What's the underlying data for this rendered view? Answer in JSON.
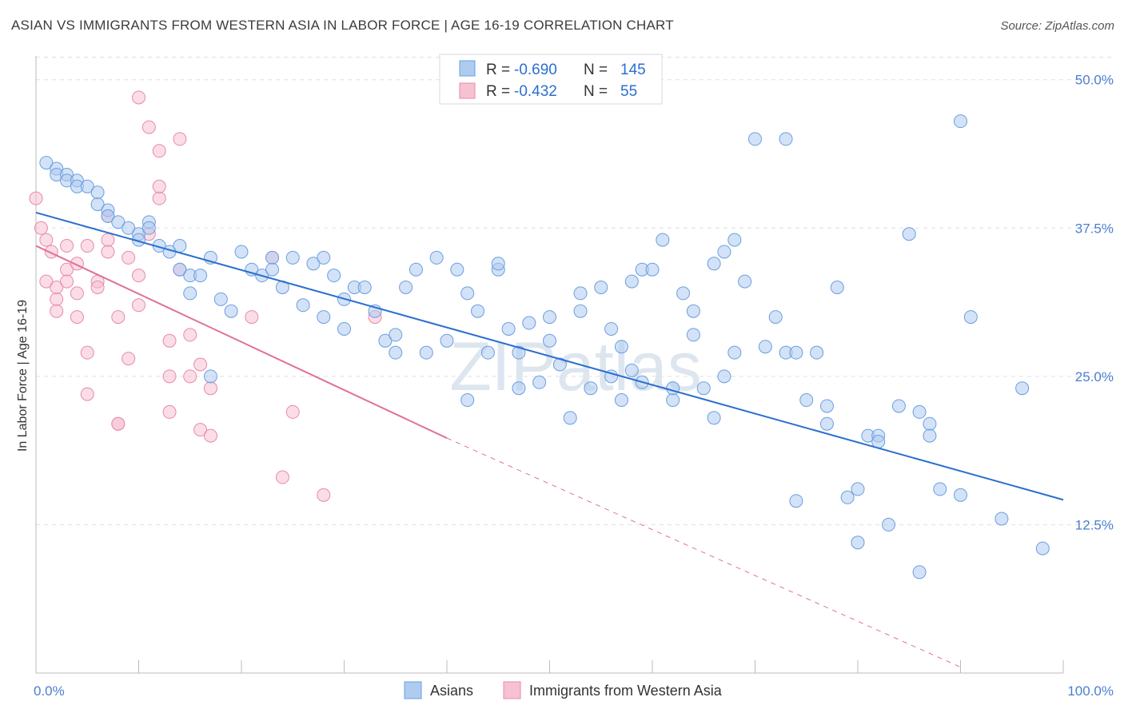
{
  "header": {
    "title": "ASIAN VS IMMIGRANTS FROM WESTERN ASIA IN LABOR FORCE | AGE 16-19 CORRELATION CHART",
    "source": "Source: ZipAtlas.com"
  },
  "watermark": "ZIPatlas",
  "legend_box": {
    "rows": [
      {
        "r_label": "R =",
        "r_value": "-0.690",
        "n_label": "N =",
        "n_value": "145"
      },
      {
        "r_label": "R =",
        "r_value": "-0.432",
        "n_label": "N =",
        "n_value": "55"
      }
    ]
  },
  "colors": {
    "asians": "#6a9fe0",
    "asians_fill": "#aecbf0",
    "asians_line": "#2a6fcf",
    "western_asia": "#e98aa8",
    "western_asia_fill": "#f6c1d1",
    "western_asia_line": "#e0709a",
    "grid": "#e0e0e0",
    "tick_label": "#4a7fcf"
  },
  "chart_data": {
    "type": "scatter",
    "title": "ASIAN VS IMMIGRANTS FROM WESTERN ASIA IN LABOR FORCE | AGE 16-19 CORRELATION CHART",
    "xlabel": "",
    "ylabel": "In Labor Force | Age 16-19",
    "xlim": [
      0,
      100
    ],
    "ylim": [
      0,
      52
    ],
    "x_tick_labels": [
      "0.0%",
      "100.0%"
    ],
    "y_ticks": [
      12.5,
      25.0,
      37.5,
      50.0
    ],
    "y_tick_labels": [
      "12.5%",
      "25.0%",
      "37.5%",
      "50.0%"
    ],
    "grid": true,
    "legend_position": "bottom",
    "series": [
      {
        "name": "Asians",
        "trend": {
          "x0": 0,
          "y0": 38.8,
          "x1": 100,
          "y1": 14.6
        },
        "points": [
          [
            1,
            43
          ],
          [
            2,
            42.5
          ],
          [
            2,
            42
          ],
          [
            3,
            42
          ],
          [
            3,
            41.5
          ],
          [
            4,
            41.5
          ],
          [
            4,
            41
          ],
          [
            5,
            41
          ],
          [
            6,
            40.5
          ],
          [
            6,
            39.5
          ],
          [
            7,
            39
          ],
          [
            7,
            38.5
          ],
          [
            8,
            38
          ],
          [
            9,
            37.5
          ],
          [
            10,
            37
          ],
          [
            10,
            36.5
          ],
          [
            11,
            38
          ],
          [
            11,
            37.5
          ],
          [
            12,
            36
          ],
          [
            13,
            35.5
          ],
          [
            14,
            36
          ],
          [
            14,
            34
          ],
          [
            15,
            33.5
          ],
          [
            15,
            32
          ],
          [
            16,
            33.5
          ],
          [
            17,
            35
          ],
          [
            17,
            25
          ],
          [
            18,
            31.5
          ],
          [
            19,
            30.5
          ],
          [
            20,
            35.5
          ],
          [
            21,
            34
          ],
          [
            22,
            33.5
          ],
          [
            23,
            35
          ],
          [
            23,
            34
          ],
          [
            24,
            32.5
          ],
          [
            25,
            35
          ],
          [
            26,
            31
          ],
          [
            27,
            34.5
          ],
          [
            28,
            30
          ],
          [
            28,
            35
          ],
          [
            29,
            33.5
          ],
          [
            30,
            31.5
          ],
          [
            30,
            29
          ],
          [
            31,
            32.5
          ],
          [
            32,
            32.5
          ],
          [
            33,
            30.5
          ],
          [
            34,
            28
          ],
          [
            35,
            27
          ],
          [
            35,
            28.5
          ],
          [
            36,
            32.5
          ],
          [
            37,
            34
          ],
          [
            38,
            27
          ],
          [
            39,
            35
          ],
          [
            40,
            28
          ],
          [
            41,
            34
          ],
          [
            42,
            32
          ],
          [
            42,
            23
          ],
          [
            43,
            30.5
          ],
          [
            44,
            27
          ],
          [
            45,
            34
          ],
          [
            45,
            34.5
          ],
          [
            46,
            29
          ],
          [
            47,
            24
          ],
          [
            47,
            27
          ],
          [
            48,
            29.5
          ],
          [
            49,
            24.5
          ],
          [
            50,
            30
          ],
          [
            50,
            28
          ],
          [
            51,
            26
          ],
          [
            52,
            21.5
          ],
          [
            53,
            32
          ],
          [
            53,
            30.5
          ],
          [
            54,
            24
          ],
          [
            55,
            32.5
          ],
          [
            56,
            29
          ],
          [
            56,
            25
          ],
          [
            57,
            23
          ],
          [
            57,
            27.5
          ],
          [
            58,
            25.5
          ],
          [
            58,
            33
          ],
          [
            59,
            24.5
          ],
          [
            59,
            34
          ],
          [
            60,
            34
          ],
          [
            61,
            36.5
          ],
          [
            62,
            23
          ],
          [
            62,
            24
          ],
          [
            63,
            32
          ],
          [
            64,
            30.5
          ],
          [
            64,
            28.5
          ],
          [
            65,
            24
          ],
          [
            66,
            21.5
          ],
          [
            66,
            34.5
          ],
          [
            67,
            25
          ],
          [
            67,
            35.5
          ],
          [
            68,
            36.5
          ],
          [
            68,
            27
          ],
          [
            69,
            33
          ],
          [
            70,
            45
          ],
          [
            71,
            27.5
          ],
          [
            72,
            30
          ],
          [
            73,
            45
          ],
          [
            73,
            27
          ],
          [
            74,
            27
          ],
          [
            74,
            14.5
          ],
          [
            75,
            23
          ],
          [
            76,
            27
          ],
          [
            77,
            22.5
          ],
          [
            77,
            21
          ],
          [
            78,
            32.5
          ],
          [
            79,
            14.8
          ],
          [
            80,
            15.5
          ],
          [
            80,
            11
          ],
          [
            81,
            20
          ],
          [
            82,
            20
          ],
          [
            82,
            19.5
          ],
          [
            83,
            12.5
          ],
          [
            84,
            22.5
          ],
          [
            85,
            37
          ],
          [
            86,
            8.5
          ],
          [
            86,
            22
          ],
          [
            87,
            21
          ],
          [
            87,
            20
          ],
          [
            88,
            15.5
          ],
          [
            90,
            46.5
          ],
          [
            90,
            15
          ],
          [
            91,
            30
          ],
          [
            94,
            13
          ],
          [
            96,
            24
          ],
          [
            98,
            10.5
          ]
        ]
      },
      {
        "name": "Immigrants from Western Asia",
        "trend": {
          "x0": 0,
          "y0": 36.0,
          "x1": 40,
          "y1": 19.8,
          "dash_x1": 90,
          "dash_y1": 0.5
        },
        "points": [
          [
            0,
            40
          ],
          [
            0.5,
            37.5
          ],
          [
            1,
            36.5
          ],
          [
            1,
            33
          ],
          [
            1.5,
            35.5
          ],
          [
            2,
            31.5
          ],
          [
            2,
            32.5
          ],
          [
            2,
            30.5
          ],
          [
            3,
            34
          ],
          [
            3,
            36
          ],
          [
            3,
            33
          ],
          [
            4,
            32
          ],
          [
            4,
            30
          ],
          [
            4,
            34.5
          ],
          [
            5,
            36
          ],
          [
            5,
            23.5
          ],
          [
            5,
            27
          ],
          [
            6,
            33
          ],
          [
            6,
            32.5
          ],
          [
            7,
            35.5
          ],
          [
            7,
            36.5
          ],
          [
            7,
            38.5
          ],
          [
            8,
            21
          ],
          [
            8,
            21
          ],
          [
            8,
            30
          ],
          [
            9,
            26.5
          ],
          [
            9,
            35
          ],
          [
            10,
            48.5
          ],
          [
            10,
            33.5
          ],
          [
            10,
            31
          ],
          [
            11,
            46
          ],
          [
            11,
            37
          ],
          [
            12,
            44
          ],
          [
            12,
            40
          ],
          [
            12,
            41
          ],
          [
            13,
            22
          ],
          [
            13,
            28
          ],
          [
            13,
            25
          ],
          [
            14,
            45
          ],
          [
            14,
            34
          ],
          [
            15,
            28.5
          ],
          [
            15,
            25
          ],
          [
            16,
            26
          ],
          [
            16,
            20.5
          ],
          [
            17,
            20
          ],
          [
            17,
            24
          ],
          [
            21,
            30
          ],
          [
            23,
            35
          ],
          [
            24,
            16.5
          ],
          [
            25,
            22
          ],
          [
            28,
            15
          ],
          [
            33,
            30
          ]
        ]
      }
    ]
  },
  "bottom_legend": {
    "items": [
      {
        "label": "Asians"
      },
      {
        "label": "Immigrants from Western Asia"
      }
    ]
  }
}
